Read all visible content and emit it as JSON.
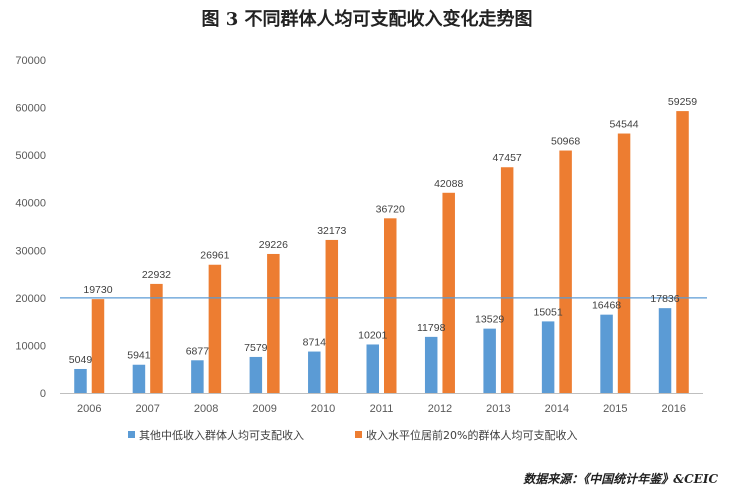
{
  "chart_data": {
    "type": "bar",
    "title": "图 3    不同群体人均可支配收入变化走势图",
    "categories": [
      "2006",
      "2007",
      "2008",
      "2009",
      "2010",
      "2011",
      "2012",
      "2013",
      "2014",
      "2015",
      "2016"
    ],
    "series": [
      {
        "name": "其他中低收入群体人均可支配收入",
        "color": "#5b9bd5",
        "values": [
          5049,
          5941,
          6877,
          7579,
          8714,
          10201,
          11798,
          13529,
          15051,
          16468,
          17836
        ]
      },
      {
        "name": "收入水平位居前20%的群体人均可支配收入",
        "color": "#ed7d31",
        "values": [
          19730,
          22932,
          26961,
          29226,
          32173,
          36720,
          42088,
          47457,
          50968,
          54544,
          59259
        ]
      }
    ],
    "yticks": [
      "0",
      "10000",
      "20000",
      "30000",
      "40000",
      "50000",
      "60000",
      "70000"
    ],
    "ylim": [
      0,
      70000
    ],
    "reference_line": {
      "value": 20000,
      "color": "#5b9bd5"
    },
    "grid": false,
    "legend_position": "bottom",
    "xlabel": "",
    "ylabel": "",
    "source": "数据来源：《中国统计年鉴》&CEIC"
  }
}
